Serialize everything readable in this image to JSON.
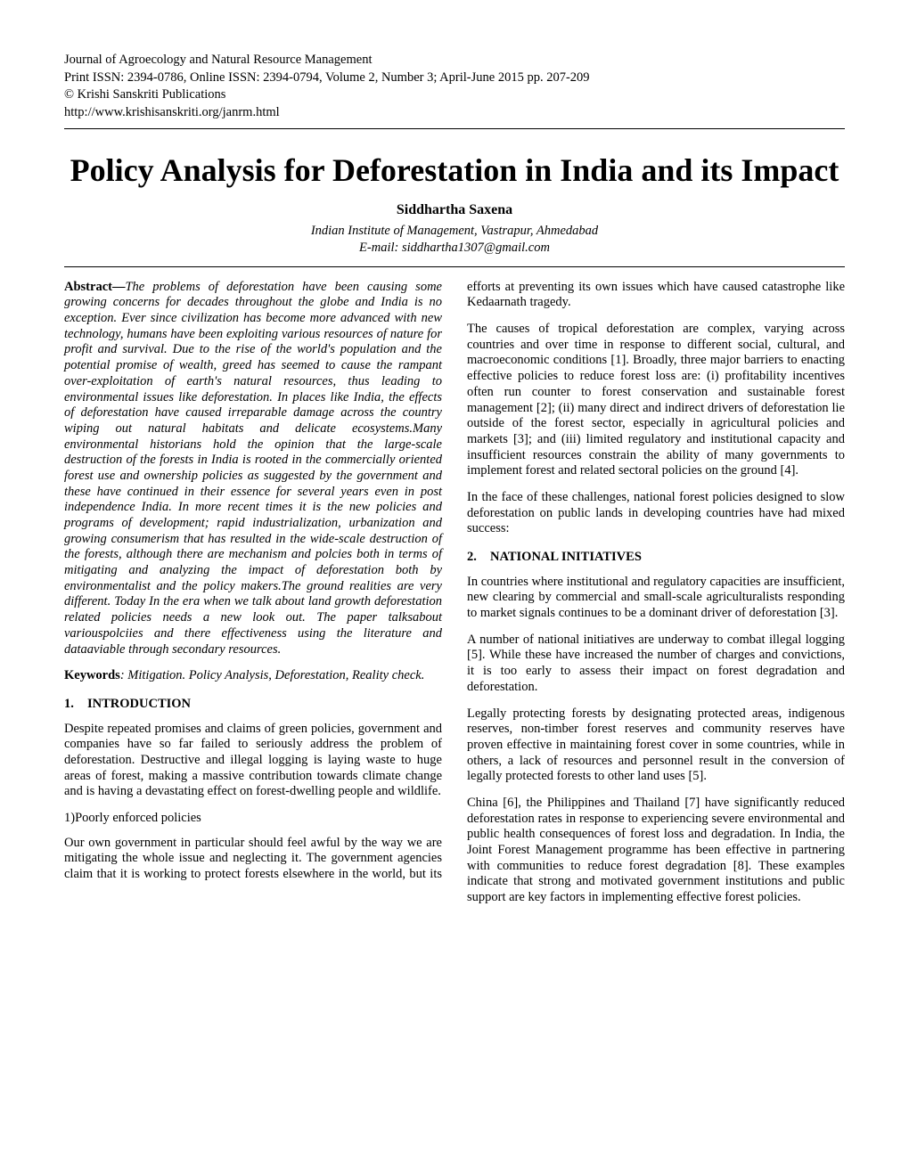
{
  "journal": {
    "name": "Journal of Agroecology and Natural Resource Management",
    "issn_line": "Print ISSN: 2394-0786, Online ISSN: 2394-0794, Volume 2, Number 3; April-June 2015 pp. 207-209",
    "copyright": "© Krishi Sanskriti Publications",
    "url": "http://www.krishisanskriti.org/janrm.html"
  },
  "title": "Policy Analysis for Deforestation in India and its Impact",
  "author": "Siddhartha Saxena",
  "affiliation": "Indian Institute of Management, Vastrapur, Ahmedabad",
  "email": "E-mail: siddhartha1307@gmail.com",
  "abstract_label": "Abstract—",
  "abstract": "The problems of deforestation have been causing some growing concerns for decades throughout the globe and India is no exception. Ever since civilization has become more advanced with new technology, humans have been exploiting various resources of nature for profit and survival. Due to the rise of the world's population and the potential promise of wealth, greed has seemed to cause the rampant over-exploitation of earth's natural resources, thus leading to environmental issues like deforestation. In places like India, the effects of deforestation have caused irreparable damage across the country wiping out natural habitats and delicate ecosystems.Many environmental historians hold the opinion that the large-scale destruction of the forests in India is rooted in the commercially oriented forest use and ownership policies as suggested by the government and these have continued in their essence for several years even in post independence India. In more recent times it is the new policies and programs of development; rapid industrialization, urbanization and growing consumerism that has resulted in the wide-scale destruction of the forests, although there are mechanism and polcies both in terms of mitigating and analyzing the impact of deforestation both by environmentalist and the policy makers.The ground realities are very different. Today In the era when we talk about land growth deforestation related policies needs a new look out. The paper talksabout variouspolciies and there effectiveness using the literature and dataaviable through secondary resources.",
  "keywords_label": "Keywords",
  "keywords": ": Mitigation. Policy Analysis, Deforestation, Reality check.",
  "section1": {
    "number": "1.",
    "heading": "INTRODUCTION",
    "p1": "Despite repeated promises and claims of green policies, government and companies have so far failed to seriously address the problem of deforestation. Destructive and illegal logging is laying waste to huge areas of forest, making a massive contribution towards climate change and is having a devastating effect on forest-dwelling people and wildlife.",
    "sub1": "1)Poorly enforced policies",
    "p2": "Our own government in particular should feel awful by the way we are mitigating the whole issue and neglecting it. The government agencies claim that it is working to protect forests elsewhere in the world, but its efforts at preventing its own issues which have caused catastrophe like Kedaarnath tragedy.",
    "p3": "The causes of tropical deforestation are complex, varying across countries and over time in response to different social, cultural, and macroeconomic conditions [1]. Broadly, three major barriers to enacting effective policies to reduce forest loss are: (i) profitability incentives often run counter to forest conservation and sustainable forest management [2]; (ii) many direct and indirect drivers of deforestation lie outside of the forest sector, especially in agricultural policies and markets [3]; and (iii) limited regulatory and institutional capacity and insufficient resources constrain the ability of many governments to implement forest and related sectoral policies on the ground [4].",
    "p4": "In the face of these challenges, national forest policies designed to slow deforestation on public lands in developing countries have had mixed success:"
  },
  "section2": {
    "number": "2.",
    "heading": "NATIONAL INITIATIVES",
    "p1": "In countries where institutional and regulatory capacities are insufficient, new clearing by commercial and small-scale agriculturalists responding to market signals continues to be a dominant driver of deforestation [3].",
    "p2": "A number of national initiatives are underway to combat illegal logging [5]. While these have increased the number of charges and convictions, it is too early to assess their impact on forest degradation and deforestation.",
    "p3": "Legally protecting forests by designating protected areas, indigenous reserves, non-timber forest reserves and community reserves have proven effective in maintaining forest cover in some countries, while in others, a lack of resources and personnel result in the conversion of legally protected forests to other land uses [5].",
    "p4": "China [6], the Philippines and Thailand [7] have significantly reduced deforestation rates in response to experiencing severe environmental and public health consequences of forest loss and degradation. In India, the Joint Forest Management programme has been effective in partnering with communities to reduce forest degradation [8]. These examples indicate that strong and motivated government institutions and public support are key factors in implementing effective forest policies."
  }
}
